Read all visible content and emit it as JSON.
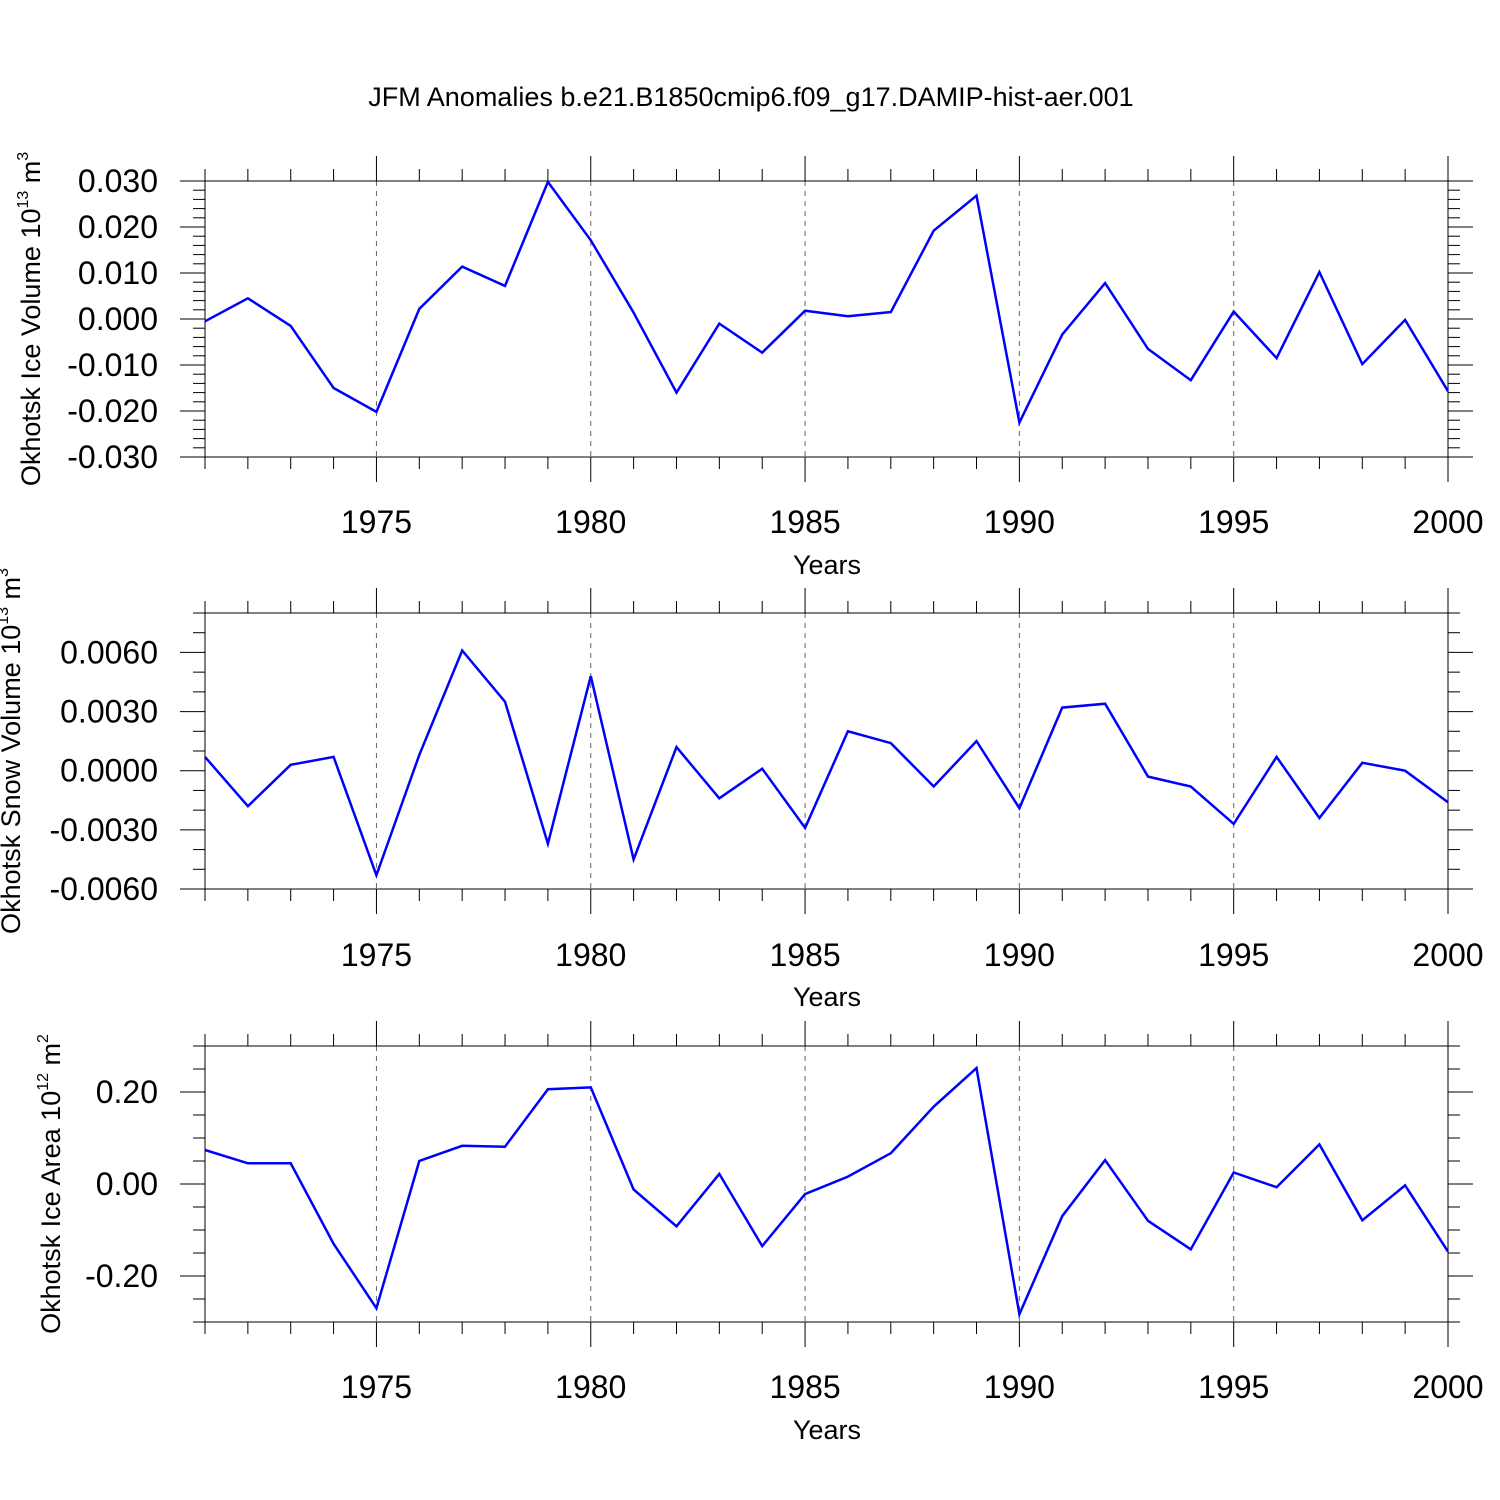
{
  "title": "JFM Anomalies b.e21.B1850cmip6.f09_g17.DAMIP-hist-aer.001",
  "chart_data": [
    {
      "type": "line",
      "ylabel": {
        "text": "Okhotsk Ice Volume 10",
        "sup": "13",
        "unit": " m",
        "unit_sup": "3"
      },
      "xlabel": "Years",
      "xlim": [
        1971,
        2000
      ],
      "ylim": [
        -0.03,
        0.03
      ],
      "y_ticks": [
        -0.03,
        -0.02,
        -0.01,
        0.0,
        0.01,
        0.02,
        0.03
      ],
      "y_tick_labels": [
        "-0.030",
        "-0.020",
        "-0.010",
        "0.000",
        "0.010",
        "0.020",
        "0.030"
      ],
      "y_minor_step": 0.002,
      "x_ticks": [
        1975,
        1980,
        1985,
        1990,
        1995,
        2000
      ],
      "x_tick_labels": [
        "1975",
        "1980",
        "1985",
        "1990",
        "1995",
        "2000"
      ],
      "color": "#0000ff",
      "x": [
        1971,
        1972,
        1973,
        1974,
        1975,
        1976,
        1977,
        1978,
        1979,
        1980,
        1981,
        1982,
        1983,
        1984,
        1985,
        1986,
        1987,
        1988,
        1989,
        1990,
        1991,
        1992,
        1993,
        1994,
        1995,
        1996,
        1997,
        1998,
        1999,
        2000
      ],
      "values": [
        -0.0005,
        0.0045,
        -0.0015,
        -0.015,
        -0.0202,
        0.0022,
        0.0114,
        0.0072,
        0.0298,
        0.0171,
        0.0014,
        -0.016,
        -0.001,
        -0.0073,
        0.0018,
        0.0006,
        0.0015,
        0.0192,
        0.0268,
        -0.0225,
        -0.0034,
        0.0078,
        -0.0065,
        -0.0133,
        0.0016,
        -0.0085,
        0.0102,
        -0.0098,
        -0.0002,
        -0.0157
      ]
    },
    {
      "type": "line",
      "ylabel": {
        "text": "Okhotsk Snow Volume 10",
        "sup": "13",
        "unit": " m",
        "unit_sup": "3"
      },
      "xlabel": "Years",
      "xlim": [
        1971,
        2000
      ],
      "ylim": [
        -0.006,
        0.008
      ],
      "y_ticks": [
        -0.006,
        -0.003,
        0.0,
        0.003,
        0.006
      ],
      "y_tick_labels": [
        "-0.0060",
        "-0.0030",
        "0.0000",
        "0.0030",
        "0.0060"
      ],
      "y_minor_step": 0.001,
      "x_ticks": [
        1975,
        1980,
        1985,
        1990,
        1995,
        2000
      ],
      "x_tick_labels": [
        "1975",
        "1980",
        "1985",
        "1990",
        "1995",
        "2000"
      ],
      "color": "#0000ff",
      "x": [
        1971,
        1972,
        1973,
        1974,
        1975,
        1976,
        1977,
        1978,
        1979,
        1980,
        1981,
        1982,
        1983,
        1984,
        1985,
        1986,
        1987,
        1988,
        1989,
        1990,
        1991,
        1992,
        1993,
        1994,
        1995,
        1996,
        1997,
        1998,
        1999,
        2000
      ],
      "values": [
        0.0007,
        -0.0018,
        0.0003,
        0.0007,
        -0.0053,
        0.0008,
        0.0061,
        0.0035,
        -0.0037,
        0.0048,
        -0.0045,
        0.0012,
        -0.0014,
        0.0001,
        -0.0029,
        0.002,
        0.0014,
        -0.0008,
        0.0015,
        -0.0019,
        0.0032,
        0.0034,
        -0.0003,
        -0.0008,
        -0.0027,
        0.0007,
        -0.0024,
        0.0004,
        0.0,
        -0.0016
      ]
    },
    {
      "type": "line",
      "ylabel": {
        "text": "Okhotsk Ice Area 10",
        "sup": "12",
        "unit": " m",
        "unit_sup": "2"
      },
      "xlabel": "Years",
      "xlim": [
        1971,
        2000
      ],
      "ylim": [
        -0.3,
        0.3
      ],
      "y_ticks": [
        -0.2,
        0.0,
        0.2
      ],
      "y_tick_labels": [
        "-0.20",
        "0.00",
        "0.20"
      ],
      "y_minor_step": 0.05,
      "x_ticks": [
        1975,
        1980,
        1985,
        1990,
        1995,
        2000
      ],
      "x_tick_labels": [
        "1975",
        "1980",
        "1985",
        "1990",
        "1995",
        "2000"
      ],
      "color": "#0000ff",
      "x": [
        1971,
        1972,
        1973,
        1974,
        1975,
        1976,
        1977,
        1978,
        1979,
        1980,
        1981,
        1982,
        1983,
        1984,
        1985,
        1986,
        1987,
        1988,
        1989,
        1990,
        1991,
        1992,
        1993,
        1994,
        1995,
        1996,
        1997,
        1998,
        1999,
        2000
      ],
      "values": [
        0.074,
        0.045,
        0.045,
        -0.13,
        -0.27,
        0.05,
        0.083,
        0.081,
        0.206,
        0.21,
        -0.012,
        -0.092,
        0.022,
        -0.135,
        -0.022,
        0.016,
        0.067,
        0.168,
        0.252,
        -0.283,
        -0.07,
        0.052,
        -0.08,
        -0.142,
        0.025,
        -0.007,
        0.086,
        -0.079,
        -0.003,
        -0.147
      ]
    }
  ]
}
